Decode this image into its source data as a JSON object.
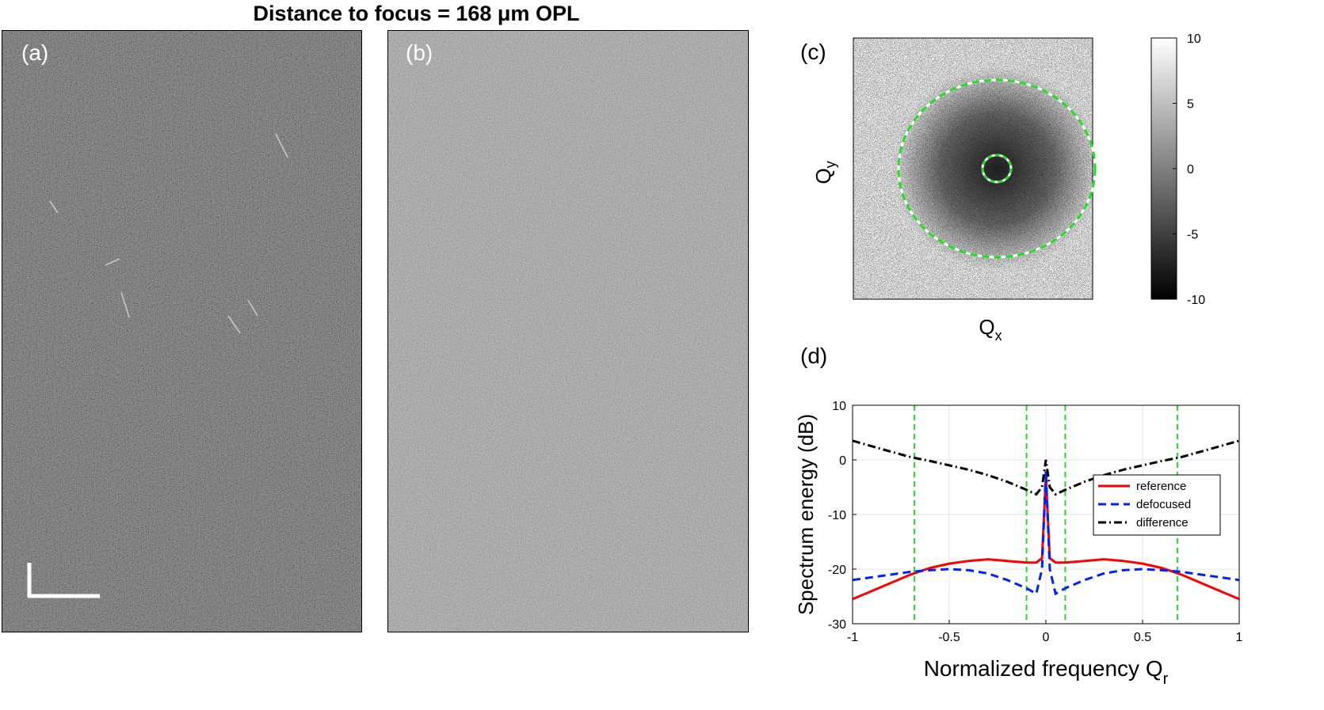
{
  "figure": {
    "title": "Distance to focus = 168 μm OPL",
    "panel_labels": {
      "a": "(a)",
      "b": "(b)",
      "c": "(c)",
      "d": "(d)"
    }
  },
  "panel_c": {
    "xlabel": "Q",
    "xlabel_sub": "x",
    "ylabel": "Q",
    "ylabel_sub": "y",
    "colorbar_ticks": [
      "10",
      "5",
      "0",
      "-5",
      "-10"
    ],
    "colorbar_values": [
      10,
      5,
      0,
      -5,
      -10
    ],
    "colorbar_range": [
      -10,
      10
    ],
    "circle_color": "#22dd22"
  },
  "chart_data": {
    "type": "line",
    "title": "",
    "xlabel": "Normalized frequency Q",
    "xlabel_sub": "r",
    "ylabel": "Spectrum energy (dB)",
    "xlim": [
      -1,
      1
    ],
    "ylim": [
      -30,
      10
    ],
    "xticks": [
      -1,
      -0.5,
      0,
      0.5,
      1
    ],
    "xtick_labels": [
      "-1",
      "-0.5",
      "0",
      "0.5",
      "1"
    ],
    "yticks": [
      -30,
      -20,
      -10,
      0,
      10
    ],
    "ytick_labels": [
      "-30",
      "-20",
      "-10",
      "0",
      "10"
    ],
    "grid": true,
    "legend_position": "right",
    "vlines": [
      -0.68,
      -0.1,
      0.1,
      0.68
    ],
    "vline_color": "#22dd22",
    "series": [
      {
        "name": "reference",
        "color": "#ff0000",
        "dash": "solid",
        "x": [
          -1,
          -0.9,
          -0.8,
          -0.7,
          -0.6,
          -0.5,
          -0.4,
          -0.3,
          -0.2,
          -0.1,
          -0.05,
          -0.02,
          0,
          0.02,
          0.05,
          0.1,
          0.2,
          0.3,
          0.4,
          0.5,
          0.6,
          0.7,
          0.8,
          0.9,
          1
        ],
        "y": [
          -25.5,
          -24,
          -22.5,
          -21,
          -19.8,
          -19,
          -18.5,
          -18.2,
          -18.5,
          -18.8,
          -18.8,
          -18,
          -3,
          -18,
          -18.8,
          -18.8,
          -18.5,
          -18.2,
          -18.5,
          -19,
          -19.8,
          -21,
          -22.5,
          -24,
          -25.5
        ]
      },
      {
        "name": "defocused",
        "color": "#0022ff",
        "dash": "dashed",
        "x": [
          -1,
          -0.9,
          -0.8,
          -0.7,
          -0.6,
          -0.5,
          -0.4,
          -0.3,
          -0.2,
          -0.1,
          -0.05,
          -0.02,
          0,
          0.02,
          0.05,
          0.1,
          0.2,
          0.3,
          0.4,
          0.5,
          0.6,
          0.7,
          0.8,
          0.9,
          1
        ],
        "y": [
          -22,
          -21.5,
          -21,
          -20.5,
          -20.2,
          -20,
          -20.2,
          -20.8,
          -22,
          -23.5,
          -24.5,
          -20,
          -2,
          -20,
          -24.5,
          -23.5,
          -22,
          -20.8,
          -20.2,
          -20,
          -20.2,
          -20.5,
          -21,
          -21.5,
          -22
        ]
      },
      {
        "name": "difference",
        "color": "#000000",
        "dash": "dashdot",
        "x": [
          -1,
          -0.9,
          -0.8,
          -0.7,
          -0.6,
          -0.5,
          -0.4,
          -0.3,
          -0.2,
          -0.1,
          -0.05,
          -0.02,
          0,
          0.02,
          0.05,
          0.1,
          0.2,
          0.3,
          0.4,
          0.5,
          0.6,
          0.7,
          0.8,
          0.9,
          1
        ],
        "y": [
          3.5,
          2.5,
          1.5,
          0.5,
          -0.2,
          -1,
          -1.8,
          -2.8,
          -4,
          -5.5,
          -6.3,
          -5,
          0,
          -5,
          -6.3,
          -5.5,
          -4,
          -2.8,
          -1.8,
          -1,
          -0.2,
          0.5,
          1.5,
          2.5,
          3.5
        ]
      }
    ]
  }
}
